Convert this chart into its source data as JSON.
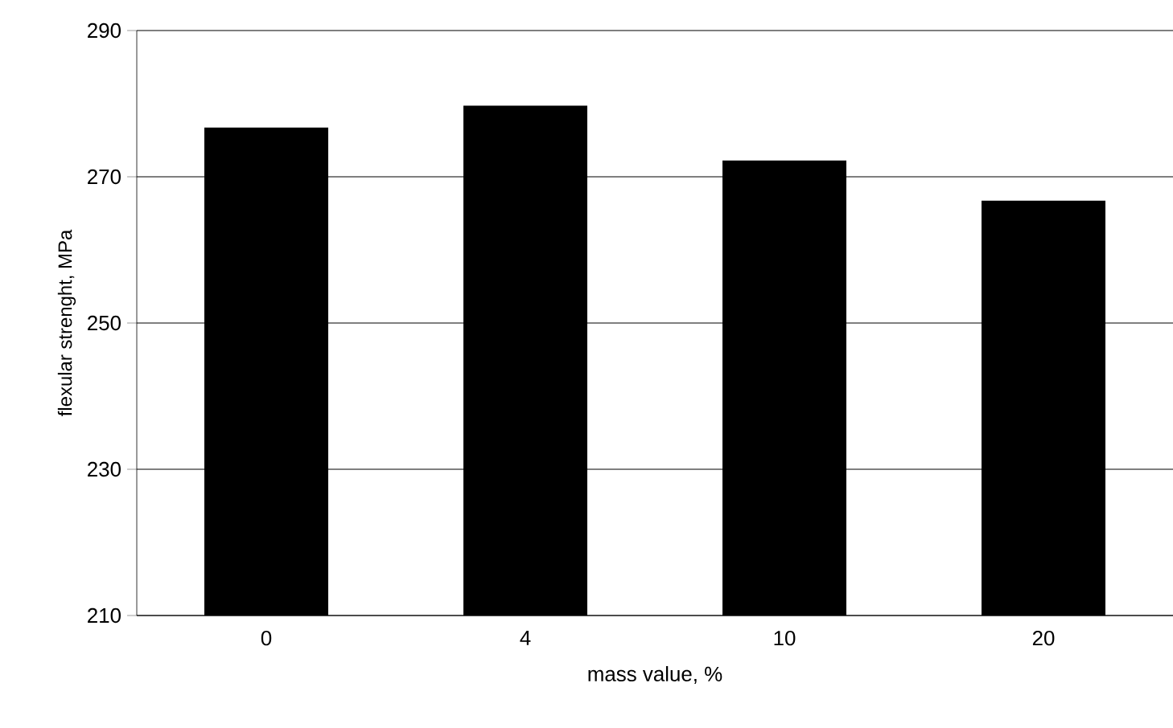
{
  "chart_data": {
    "type": "bar",
    "xlabel": "mass value, %",
    "ylabel": "flexular strenght, MPa",
    "categories": [
      "0",
      "4",
      "10",
      "20"
    ],
    "values": [
      276.5,
      279.5,
      272,
      266.5
    ],
    "color": "#000000",
    "ylim": [
      210,
      290
    ],
    "yticks": [
      210,
      230,
      250,
      270,
      290
    ],
    "grid": "y"
  }
}
